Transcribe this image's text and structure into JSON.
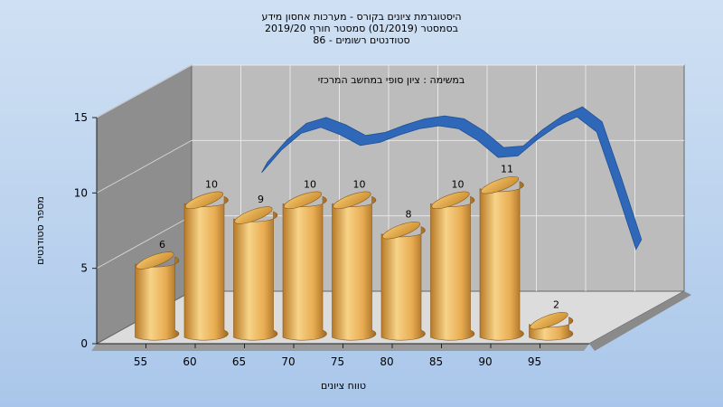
{
  "chart_data": {
    "type": "bar",
    "title_lines": [
      "היסטוגרמת ציונים בקורס - מערכות אחסון מידע",
      "בסמסטר  (01/2019)  סמסטר חורף 2019/20",
      "סטודנטים רשומים - 86"
    ],
    "subtitle": "במשימה : ציון סופי במחשב המרכזי",
    "xlabel": "טווח ציונים",
    "ylabel": "מספר סטודנטים",
    "x_ticks": [
      "55",
      "60",
      "65",
      "70",
      "75",
      "80",
      "85",
      "90",
      "95"
    ],
    "y_ticks": [
      "0",
      "5",
      "10",
      "15"
    ],
    "ylim": [
      0,
      15
    ],
    "categories": [
      "55",
      "60",
      "65",
      "70",
      "75",
      "80",
      "85",
      "90",
      "95"
    ],
    "values": [
      6,
      10,
      9,
      10,
      10,
      8,
      10,
      11,
      2
    ],
    "series": [
      {
        "values": [
          6,
          10,
          9,
          10,
          10,
          8,
          10,
          11,
          2
        ]
      }
    ],
    "curve": {
      "x": [
        62,
        64,
        66,
        68,
        70,
        72,
        74,
        76,
        78,
        80,
        82,
        84,
        86,
        88,
        90,
        92,
        94,
        96,
        98,
        100
      ],
      "y": [
        10.1,
        11.6,
        12.7,
        13.1,
        12.6,
        11.9,
        12.1,
        12.6,
        13.0,
        13.2,
        13.0,
        12.2,
        11.1,
        11.2,
        12.3,
        13.2,
        13.8,
        12.8,
        9.0,
        5.0
      ]
    },
    "grid": true,
    "legend": "none",
    "colors": {
      "bar_light": "#f7d388",
      "bar_mid": "#e8ac52",
      "bar_dark": "#b77a27",
      "curve": "#2f68b8",
      "plot_back": "#b9b9b9",
      "side_wall": "#8c8c8c",
      "floor": "#d9d9d9"
    }
  }
}
